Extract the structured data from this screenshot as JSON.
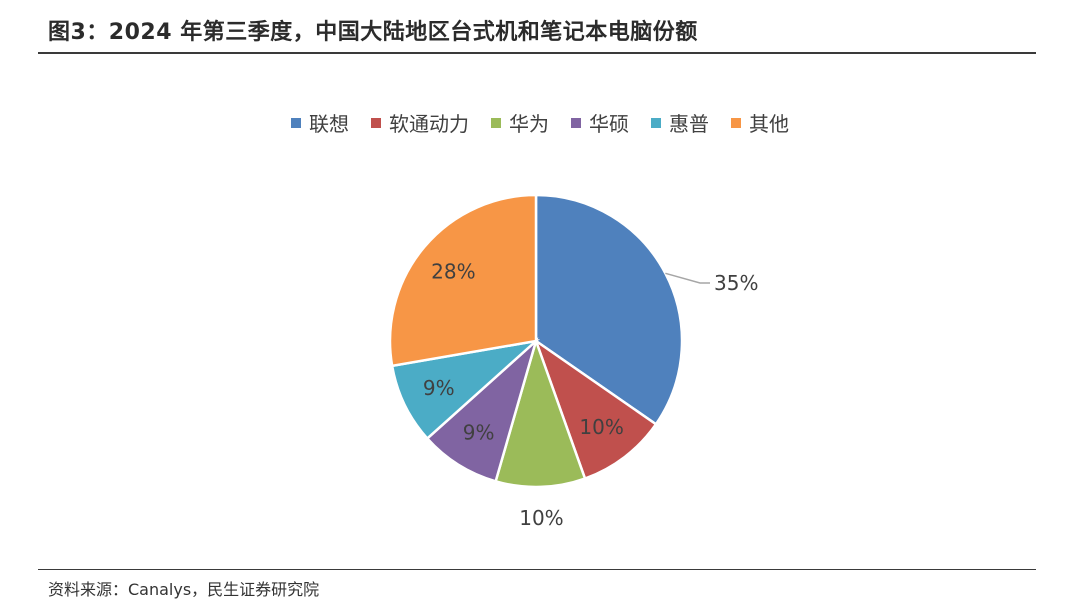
{
  "header": {
    "title": "图3：2024 年第三季度，中国大陆地区台式机和笔记本电脑份额"
  },
  "footer": {
    "source": "资料来源：Canalys，民生证券研究院"
  },
  "chart_data": {
    "type": "pie",
    "title": "",
    "legend_position": "top",
    "categories": [
      "联想",
      "软通动力",
      "华为",
      "华硕",
      "惠普",
      "其他"
    ],
    "values": [
      35,
      10,
      10,
      9,
      9,
      28
    ],
    "labels": [
      "35%",
      "10%",
      "10%",
      "9%",
      "9%",
      "28%"
    ],
    "colors": [
      "#4F81BD",
      "#C0504D",
      "#9BBB59",
      "#8064A2",
      "#4BACC6",
      "#F79646"
    ]
  }
}
